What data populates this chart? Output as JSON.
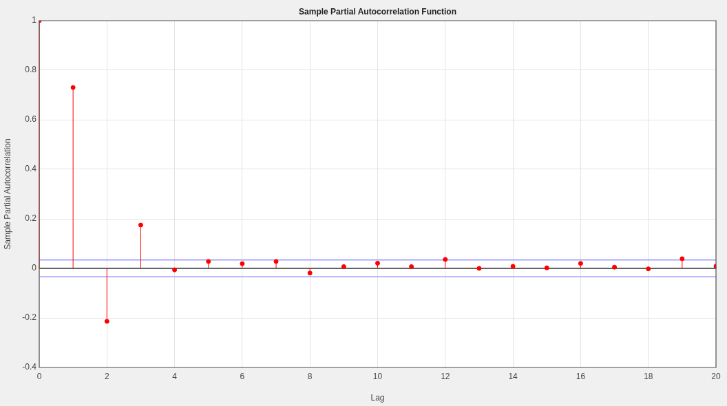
{
  "chart_data": {
    "type": "lollipop",
    "title": "Sample Partial Autocorrelation Function",
    "xlabel": "Lag",
    "ylabel": "Sample Partial Autocorrelation",
    "x": [
      0,
      1,
      2,
      3,
      4,
      5,
      6,
      7,
      8,
      9,
      10,
      11,
      12,
      13,
      14,
      15,
      16,
      17,
      18,
      19,
      20
    ],
    "values": [
      1,
      0.73,
      -0.214,
      0.175,
      -0.006,
      0.028,
      0.019,
      0.028,
      -0.019,
      0.007,
      0.021,
      0.007,
      0.036,
      0,
      0.008,
      0.002,
      0.02,
      0.005,
      -0.002,
      0.039,
      0.009
    ],
    "color": "#ff0000",
    "marker": "circle",
    "xlim": [
      0,
      20
    ],
    "xticks": [
      0,
      2,
      4,
      6,
      8,
      10,
      12,
      14,
      16,
      18,
      20
    ],
    "ylim": [
      -0.4,
      1
    ],
    "yticks": [
      -0.4,
      -0.2,
      0,
      0.2,
      0.4,
      0.6,
      0.8,
      1
    ],
    "grid": true,
    "ref_lines": [
      {
        "axis": "y",
        "value": 0,
        "color": "#333333"
      },
      {
        "axis": "y",
        "value": 0.034,
        "color": "#9999ff"
      },
      {
        "axis": "y",
        "value": -0.034,
        "color": "#9999ff"
      }
    ]
  }
}
